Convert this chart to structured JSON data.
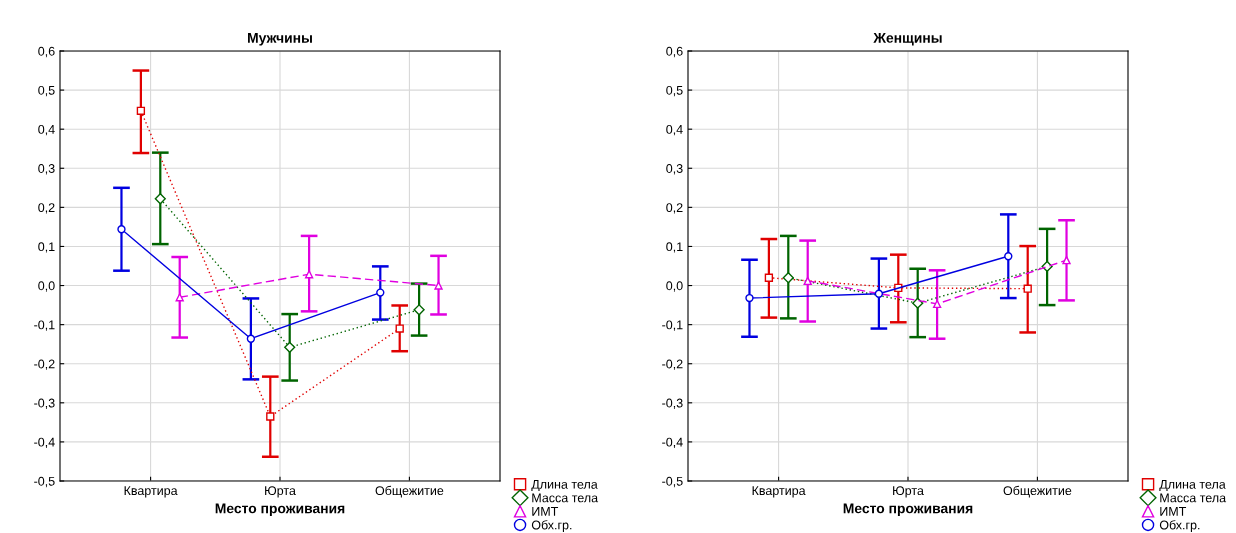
{
  "chart_data": [
    {
      "type": "line",
      "title": "Мужчины",
      "xlabel": "Место проживания",
      "categories": [
        "Квартира",
        "Юрта",
        "Общежитие"
      ],
      "ylim": [
        -0.5,
        0.6
      ],
      "yticks": [
        {
          "value": -0.5,
          "label": "-0,5"
        },
        {
          "value": -0.4,
          "label": "-0,4"
        },
        {
          "value": -0.3,
          "label": "-0,3"
        },
        {
          "value": -0.2,
          "label": "-0,2"
        },
        {
          "value": -0.1,
          "label": "-0,1"
        },
        {
          "value": 0,
          "label": "0,0"
        },
        {
          "value": 0.1,
          "label": "0,1"
        },
        {
          "value": 0.2,
          "label": "0,2"
        },
        {
          "value": 0.3,
          "label": "0,3"
        },
        {
          "value": 0.4,
          "label": "0,4"
        },
        {
          "value": 0.5,
          "label": "0,5"
        },
        {
          "value": 0.6,
          "label": "0,6"
        }
      ],
      "grid": true,
      "legend": "bottom right",
      "series": [
        {
          "name": "Длина тела",
          "color": "#e00000",
          "marker": "square",
          "line_style": "dotted",
          "values": [
            0.447,
            -0.335,
            -0.11
          ],
          "errors": [
            [
              0.339,
              0.55
            ],
            [
              -0.438,
              -0.233
            ],
            [
              -0.168,
              -0.051
            ]
          ]
        },
        {
          "name": "Масса тела",
          "color": "#006400",
          "marker": "diamond",
          "line_style": "dotted",
          "values": [
            0.222,
            -0.158,
            -0.062
          ],
          "errors": [
            [
              0.106,
              0.34
            ],
            [
              -0.243,
              -0.073
            ],
            [
              -0.128,
              0.005
            ]
          ]
        },
        {
          "name": "ИМТ",
          "color": "#e000e0",
          "marker": "triangle",
          "line_style": "dashed",
          "values": [
            -0.03,
            0.029,
            0.0
          ],
          "errors": [
            [
              -0.133,
              0.073
            ],
            [
              -0.066,
              0.127
            ],
            [
              -0.074,
              0.076
            ]
          ]
        },
        {
          "name": "Обх.гр.",
          "color": "#0000e0",
          "marker": "circle",
          "line_style": "solid",
          "values": [
            0.144,
            -0.136,
            -0.018
          ],
          "errors": [
            [
              0.038,
              0.25
            ],
            [
              -0.24,
              -0.033
            ],
            [
              -0.087,
              0.049
            ]
          ]
        }
      ]
    },
    {
      "type": "line",
      "title": "Женщины",
      "xlabel": "Место проживания",
      "categories": [
        "Квартира",
        "Юрта",
        "Общежитие"
      ],
      "ylim": [
        -0.5,
        0.6
      ],
      "yticks": [
        {
          "value": -0.5,
          "label": "-0,5"
        },
        {
          "value": -0.4,
          "label": "-0,4"
        },
        {
          "value": -0.3,
          "label": "-0,3"
        },
        {
          "value": -0.2,
          "label": "-0,2"
        },
        {
          "value": -0.1,
          "label": "-0,1"
        },
        {
          "value": 0,
          "label": "0,0"
        },
        {
          "value": 0.1,
          "label": "0,1"
        },
        {
          "value": 0.2,
          "label": "0,2"
        },
        {
          "value": 0.3,
          "label": "0,3"
        },
        {
          "value": 0.4,
          "label": "0,4"
        },
        {
          "value": 0.5,
          "label": "0,5"
        },
        {
          "value": 0.6,
          "label": "0,6"
        }
      ],
      "grid": true,
      "legend": "bottom right",
      "series": [
        {
          "name": "Длина тела",
          "color": "#e00000",
          "marker": "square",
          "line_style": "dotted",
          "values": [
            0.02,
            -0.006,
            -0.008
          ],
          "errors": [
            [
              -0.082,
              0.119
            ],
            [
              -0.094,
              0.079
            ],
            [
              -0.12,
              0.101
            ]
          ]
        },
        {
          "name": "Масса тела",
          "color": "#006400",
          "marker": "diamond",
          "line_style": "dotted",
          "values": [
            0.02,
            -0.045,
            0.049
          ],
          "errors": [
            [
              -0.084,
              0.127
            ],
            [
              -0.132,
              0.043
            ],
            [
              -0.05,
              0.145
            ]
          ]
        },
        {
          "name": "ИМТ",
          "color": "#e000e0",
          "marker": "triangle",
          "line_style": "dashed",
          "values": [
            0.012,
            -0.047,
            0.065
          ],
          "errors": [
            [
              -0.092,
              0.115
            ],
            [
              -0.136,
              0.039
            ],
            [
              -0.038,
              0.167
            ]
          ]
        },
        {
          "name": "Обх.гр.",
          "color": "#0000e0",
          "marker": "circle",
          "line_style": "solid",
          "values": [
            -0.032,
            -0.021,
            0.075
          ],
          "errors": [
            [
              -0.131,
              0.066
            ],
            [
              -0.11,
              0.069
            ],
            [
              -0.032,
              0.182
            ]
          ]
        }
      ]
    }
  ]
}
